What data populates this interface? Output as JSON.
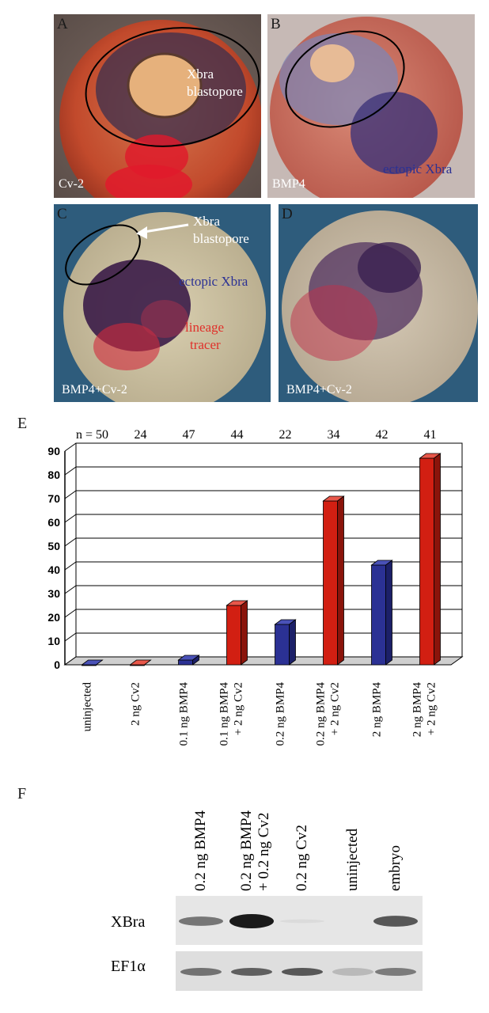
{
  "panels": [
    {
      "label": "A",
      "caption": "Cv-2",
      "annotation": [
        "Xbra",
        "blastopore"
      ]
    },
    {
      "label": "B",
      "caption": "BMP4",
      "annotation": [
        "ectopic Xbra"
      ]
    },
    {
      "label": "C",
      "caption": "BMP4+Cv-2",
      "annotation": [
        "Xbra",
        "blastopore",
        "ectopic Xbra",
        "lineage",
        "tracer"
      ]
    },
    {
      "label": "D",
      "caption": "BMP4+Cv-2",
      "annotation": []
    }
  ],
  "colors": {
    "blue": "#2b3194",
    "red": "#d21f12",
    "lineage": "#e0302a"
  },
  "chart_data": {
    "type": "bar",
    "panel_label": "E",
    "n_prefix": "n = ",
    "n_values": [
      "50",
      "24",
      "47",
      "44",
      "22",
      "34",
      "42",
      "41"
    ],
    "categories": [
      [
        "uninjected"
      ],
      [
        "2 ng Cv2"
      ],
      [
        "0.1 ng BMP4"
      ],
      [
        "0.1 ng BMP4",
        "+ 2 ng Cv2"
      ],
      [
        "0.2 ng BMP4"
      ],
      [
        "0.2 ng BMP4",
        "+ 2 ng Cv2"
      ],
      [
        "2 ng BMP4"
      ],
      [
        "2 ng BMP4",
        "+ 2 ng Cv2"
      ]
    ],
    "values": [
      0,
      0,
      2,
      25,
      17,
      69,
      42,
      87
    ],
    "bar_colors": [
      "blue",
      "red",
      "blue",
      "red",
      "blue",
      "red",
      "blue",
      "red"
    ],
    "ylim": [
      0,
      90
    ],
    "yticks": [
      "0",
      "10",
      "20",
      "30",
      "40",
      "50",
      "60",
      "70",
      "80",
      "90"
    ],
    "grid": true
  },
  "blot": {
    "panel_label": "F",
    "lanes": [
      [
        "0.2 ng BMP4"
      ],
      [
        "0.2 ng BMP4",
        "+ 0.2 ng Cv2"
      ],
      [
        "0.2 ng Cv2"
      ],
      [
        "uninjected"
      ],
      [
        "embryo"
      ]
    ],
    "rows": [
      "XBra",
      "EF1α"
    ],
    "xbra_intensity": [
      0.55,
      1.0,
      0.05,
      0.0,
      0.7
    ],
    "ef1a_intensity": [
      0.6,
      0.7,
      0.75,
      0.2,
      0.55
    ]
  }
}
